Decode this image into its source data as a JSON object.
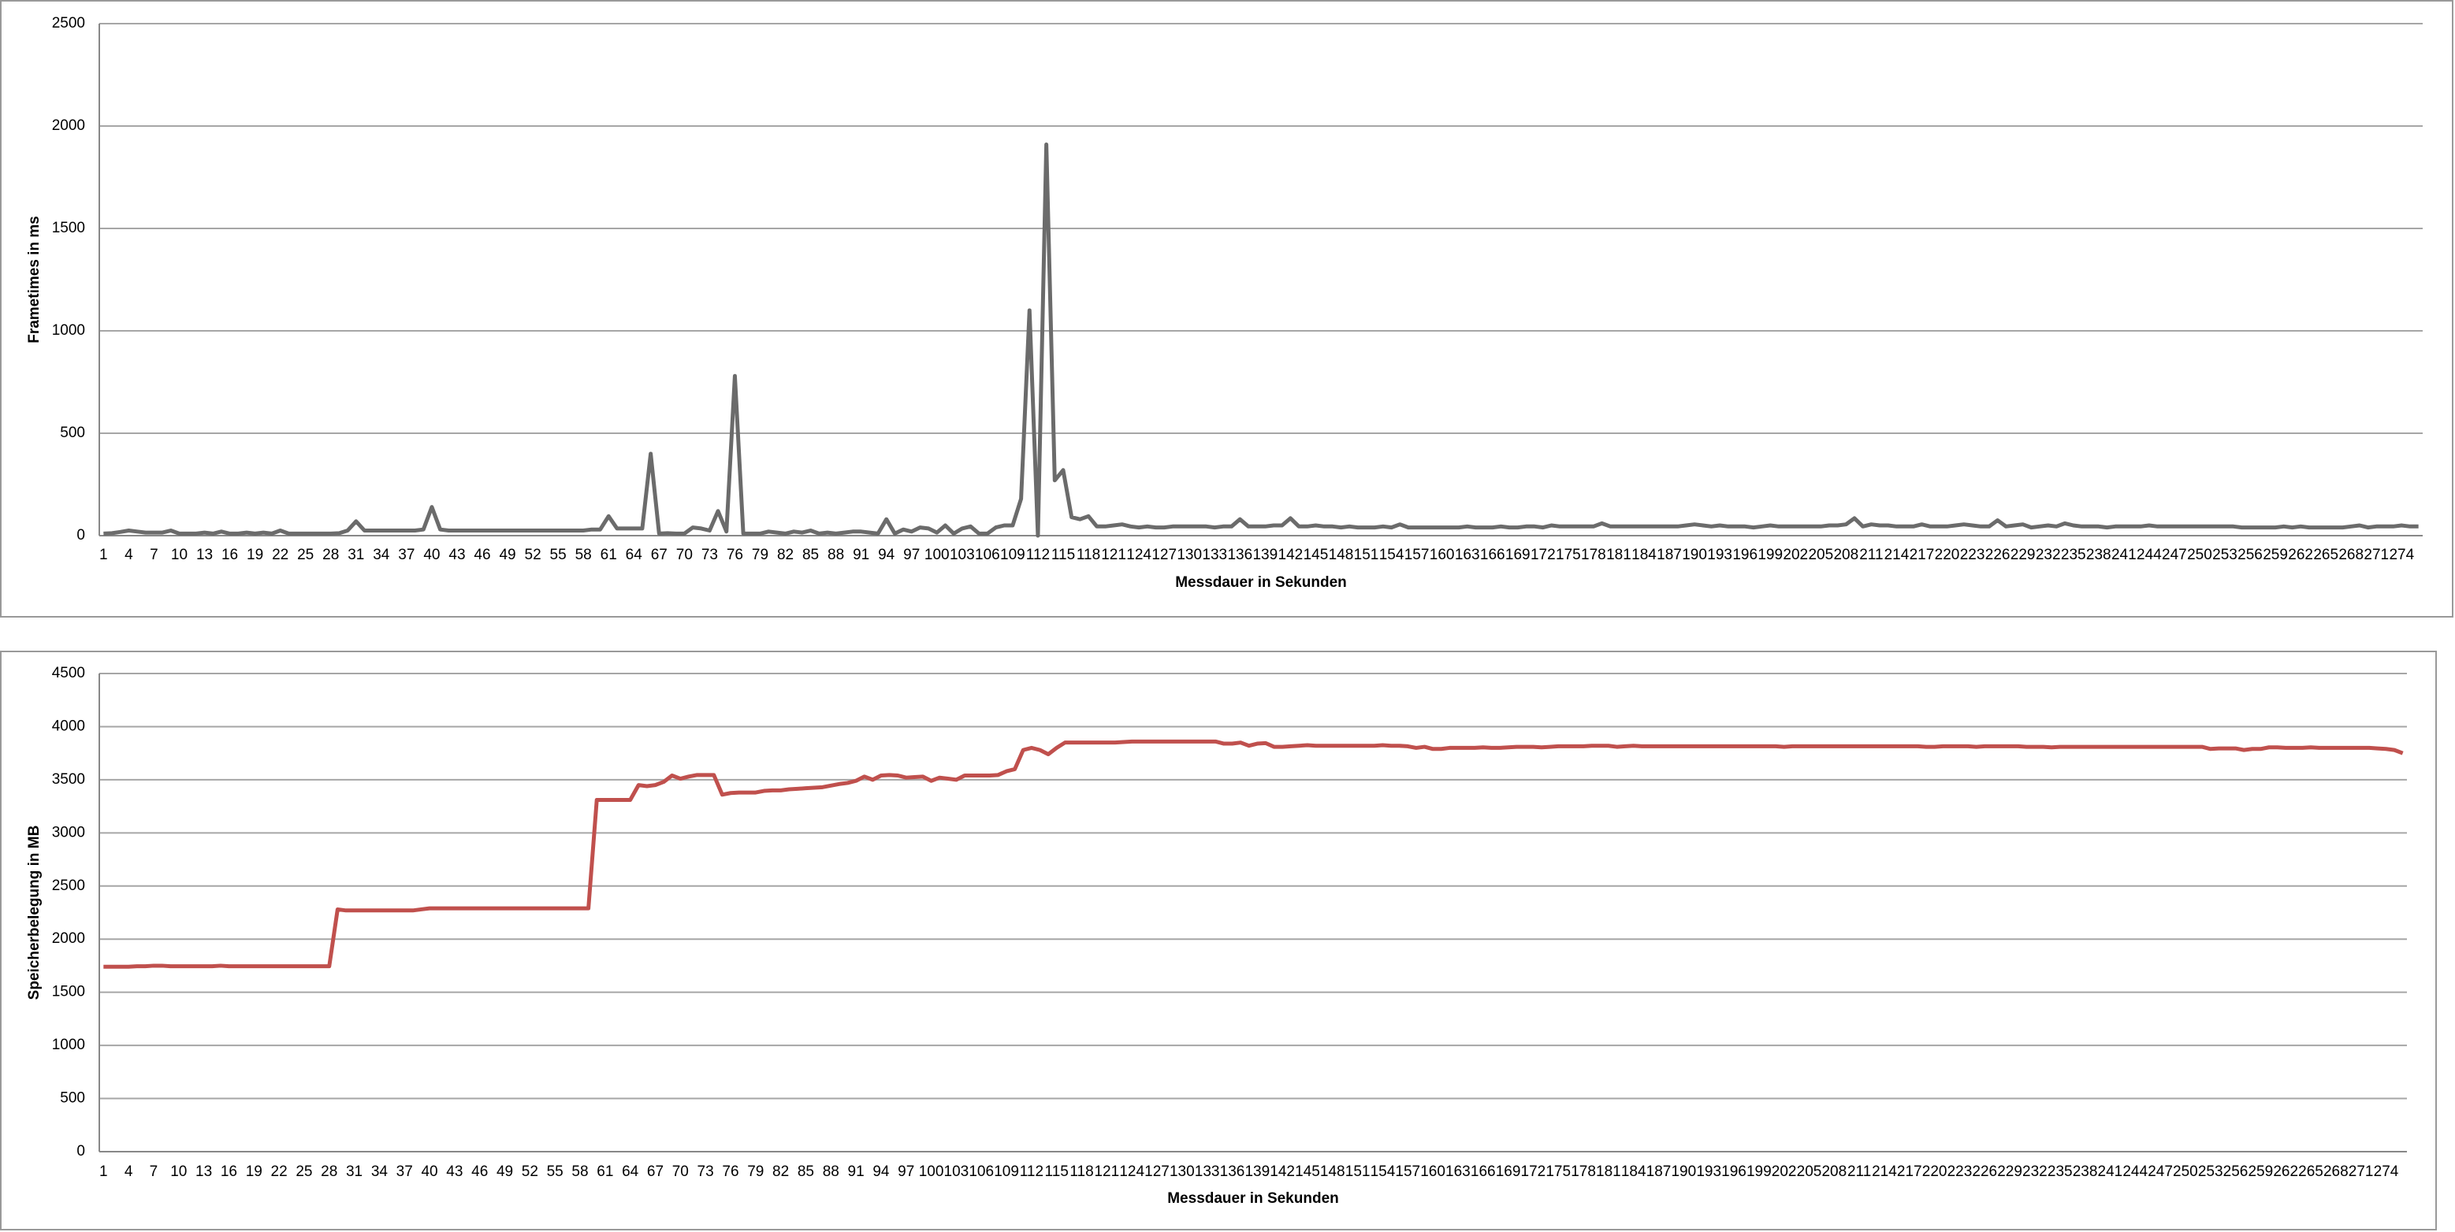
{
  "chart_data": [
    {
      "type": "line",
      "color": "#6b6b6b",
      "y_label": "Frametimes in ms",
      "x_label": "Messdauer in Sekunden",
      "grid": true,
      "x": [
        1,
        2,
        3,
        4,
        5,
        6,
        7,
        8,
        9,
        10,
        11,
        12,
        13,
        14,
        15,
        16,
        17,
        18,
        19,
        20,
        21,
        22,
        23,
        24,
        25,
        26,
        27,
        28,
        29,
        30,
        31,
        32,
        33,
        34,
        35,
        36,
        37,
        38,
        39,
        40,
        41,
        42,
        43,
        44,
        45,
        46,
        47,
        48,
        49,
        50,
        51,
        52,
        53,
        54,
        55,
        56,
        57,
        58,
        59,
        60,
        61,
        62,
        63,
        64,
        65,
        66,
        67,
        68,
        69,
        70,
        71,
        72,
        73,
        74,
        75,
        76,
        77,
        78,
        79,
        80,
        81,
        82,
        83,
        84,
        85,
        86,
        87,
        88,
        89,
        90,
        91,
        92,
        93,
        94,
        95,
        96,
        97,
        98,
        99,
        100,
        101,
        102,
        103,
        104,
        105,
        106,
        107,
        108,
        109,
        110,
        111,
        112,
        113,
        114,
        115,
        116,
        117,
        118,
        119,
        120,
        121,
        122,
        123,
        124,
        125,
        126,
        127,
        128,
        129,
        130,
        131,
        132,
        133,
        134,
        135,
        136,
        137,
        138,
        139,
        140,
        141,
        142,
        143,
        144,
        145,
        146,
        147,
        148,
        149,
        150,
        151,
        152,
        153,
        154,
        155,
        156,
        157,
        158,
        159,
        160,
        161,
        162,
        163,
        164,
        165,
        166,
        167,
        168,
        169,
        170,
        171,
        172,
        173,
        174,
        175,
        176,
        177,
        178,
        179,
        180,
        181,
        182,
        183,
        184,
        185,
        186,
        187,
        188,
        189,
        190,
        191,
        192,
        193,
        194,
        195,
        196,
        197,
        198,
        199,
        200,
        201,
        202,
        203,
        204,
        205,
        206,
        207,
        208,
        209,
        210,
        211,
        212,
        213,
        214,
        215,
        216,
        217,
        218,
        219,
        220,
        221,
        222,
        223,
        224,
        225,
        226,
        227,
        228,
        229,
        230,
        231,
        232,
        233,
        234,
        235,
        236,
        237,
        238,
        239,
        240,
        241,
        242,
        243,
        244,
        245,
        246,
        247,
        248,
        249,
        250,
        251,
        252,
        253,
        254,
        255,
        256,
        257,
        258,
        259,
        260,
        261,
        262,
        263,
        264,
        265,
        266,
        267,
        268,
        269,
        270,
        271,
        272,
        273,
        274,
        275,
        276
      ],
      "values": [
        10,
        12,
        18,
        25,
        20,
        15,
        15,
        15,
        25,
        10,
        10,
        10,
        15,
        10,
        20,
        10,
        10,
        15,
        10,
        15,
        10,
        25,
        10,
        10,
        10,
        10,
        10,
        10,
        12,
        25,
        70,
        25,
        25,
        25,
        25,
        25,
        25,
        25,
        30,
        140,
        30,
        25,
        25,
        25,
        25,
        25,
        25,
        25,
        25,
        25,
        25,
        25,
        25,
        25,
        25,
        25,
        25,
        25,
        30,
        30,
        95,
        35,
        35,
        35,
        35,
        400,
        10,
        12,
        10,
        10,
        40,
        35,
        25,
        120,
        20,
        780,
        10,
        10,
        10,
        20,
        15,
        10,
        20,
        15,
        25,
        10,
        15,
        10,
        15,
        20,
        20,
        15,
        10,
        80,
        10,
        30,
        20,
        40,
        35,
        15,
        50,
        10,
        35,
        45,
        10,
        10,
        40,
        50,
        50,
        180,
        1100,
        0,
        1910,
        270,
        320,
        90,
        80,
        95,
        45,
        45,
        50,
        55,
        45,
        40,
        45,
        40,
        40,
        45,
        45,
        45,
        45,
        45,
        40,
        45,
        45,
        80,
        45,
        45,
        45,
        50,
        50,
        85,
        45,
        45,
        50,
        45,
        45,
        40,
        45,
        40,
        40,
        40,
        45,
        40,
        55,
        40,
        40,
        40,
        40,
        40,
        40,
        40,
        45,
        40,
        40,
        40,
        45,
        40,
        40,
        45,
        45,
        40,
        50,
        45,
        45,
        45,
        45,
        45,
        60,
        45,
        45,
        45,
        45,
        45,
        45,
        45,
        45,
        45,
        50,
        55,
        50,
        45,
        50,
        45,
        45,
        45,
        40,
        45,
        50,
        45,
        45,
        45,
        45,
        45,
        45,
        50,
        50,
        55,
        85,
        45,
        55,
        50,
        50,
        45,
        45,
        45,
        55,
        45,
        45,
        45,
        50,
        55,
        50,
        45,
        45,
        75,
        45,
        50,
        55,
        40,
        45,
        50,
        45,
        60,
        50,
        45,
        45,
        45,
        40,
        45,
        45,
        45,
        45,
        50,
        45,
        45,
        45,
        45,
        45,
        45,
        45,
        45,
        45,
        45,
        40,
        40,
        40,
        40,
        40,
        45,
        40,
        45,
        40,
        40,
        40,
        40,
        40,
        45,
        50,
        40,
        45,
        45,
        45,
        50,
        45,
        45
      ],
      "xlim": [
        0.5,
        276.5
      ],
      "xticks": [
        1,
        4,
        7,
        10,
        13,
        16,
        19,
        22,
        25,
        28,
        31,
        34,
        37,
        40,
        43,
        46,
        49,
        52,
        55,
        58,
        61,
        64,
        67,
        70,
        73,
        76,
        79,
        82,
        85,
        88,
        91,
        94,
        97,
        100,
        103,
        106,
        109,
        112,
        115,
        118,
        121,
        124,
        127,
        130,
        133,
        136,
        139,
        142,
        145,
        148,
        151,
        154,
        157,
        160,
        163,
        166,
        169,
        172,
        175,
        178,
        181,
        184,
        187,
        190,
        193,
        196,
        199,
        202,
        205,
        208,
        211,
        214,
        217,
        220,
        223,
        226,
        229,
        232,
        235,
        238,
        241,
        244,
        247,
        250,
        253,
        256,
        259,
        262,
        265,
        268,
        271,
        274
      ],
      "ylim": [
        0,
        2500
      ],
      "yticks": [
        0,
        500,
        1000,
        1500,
        2000,
        2500
      ]
    },
    {
      "type": "line",
      "color": "#c0504d",
      "y_label": "Speicherbelegung in MB",
      "x_label": "Messdauer in Sekunden",
      "grid": true,
      "x": [
        1,
        2,
        3,
        4,
        5,
        6,
        7,
        8,
        9,
        10,
        11,
        12,
        13,
        14,
        15,
        16,
        17,
        18,
        19,
        20,
        21,
        22,
        23,
        24,
        25,
        26,
        27,
        28,
        29,
        30,
        31,
        32,
        33,
        34,
        35,
        36,
        37,
        38,
        39,
        40,
        41,
        42,
        43,
        44,
        45,
        46,
        47,
        48,
        49,
        50,
        51,
        52,
        53,
        54,
        55,
        56,
        57,
        58,
        59,
        60,
        61,
        62,
        63,
        64,
        65,
        66,
        67,
        68,
        69,
        70,
        71,
        72,
        73,
        74,
        75,
        76,
        77,
        78,
        79,
        80,
        81,
        82,
        83,
        84,
        85,
        86,
        87,
        88,
        89,
        90,
        91,
        92,
        93,
        94,
        95,
        96,
        97,
        98,
        99,
        100,
        101,
        102,
        103,
        104,
        105,
        106,
        107,
        108,
        109,
        110,
        111,
        112,
        113,
        114,
        115,
        116,
        117,
        118,
        119,
        120,
        121,
        122,
        123,
        124,
        125,
        126,
        127,
        128,
        129,
        130,
        131,
        132,
        133,
        134,
        135,
        136,
        137,
        138,
        139,
        140,
        141,
        142,
        143,
        144,
        145,
        146,
        147,
        148,
        149,
        150,
        151,
        152,
        153,
        154,
        155,
        156,
        157,
        158,
        159,
        160,
        161,
        162,
        163,
        164,
        165,
        166,
        167,
        168,
        169,
        170,
        171,
        172,
        173,
        174,
        175,
        176,
        177,
        178,
        179,
        180,
        181,
        182,
        183,
        184,
        185,
        186,
        187,
        188,
        189,
        190,
        191,
        192,
        193,
        194,
        195,
        196,
        197,
        198,
        199,
        200,
        201,
        202,
        203,
        204,
        205,
        206,
        207,
        208,
        209,
        210,
        211,
        212,
        213,
        214,
        215,
        216,
        217,
        218,
        219,
        220,
        221,
        222,
        223,
        224,
        225,
        226,
        227,
        228,
        229,
        230,
        231,
        232,
        233,
        234,
        235,
        236,
        237,
        238,
        239,
        240,
        241,
        242,
        243,
        244,
        245,
        246,
        247,
        248,
        249,
        250,
        251,
        252,
        253,
        254,
        255,
        256,
        257,
        258,
        259,
        260,
        261,
        262,
        263,
        264,
        265,
        266,
        267,
        268,
        269,
        270,
        271,
        272,
        273,
        274,
        275,
        276
      ],
      "values": [
        1740,
        1740,
        1740,
        1740,
        1745,
        1745,
        1750,
        1750,
        1745,
        1745,
        1745,
        1745,
        1745,
        1745,
        1750,
        1745,
        1745,
        1745,
        1745,
        1745,
        1745,
        1745,
        1745,
        1745,
        1745,
        1745,
        1745,
        1745,
        2280,
        2270,
        2270,
        2270,
        2270,
        2270,
        2270,
        2270,
        2270,
        2270,
        2280,
        2290,
        2290,
        2290,
        2290,
        2290,
        2290,
        2290,
        2290,
        2290,
        2290,
        2290,
        2290,
        2290,
        2290,
        2290,
        2290,
        2290,
        2290,
        2290,
        2290,
        3310,
        3310,
        3310,
        3310,
        3310,
        3450,
        3440,
        3450,
        3480,
        3540,
        3510,
        3530,
        3545,
        3545,
        3545,
        3360,
        3375,
        3380,
        3380,
        3380,
        3395,
        3400,
        3400,
        3410,
        3415,
        3420,
        3425,
        3430,
        3445,
        3460,
        3470,
        3490,
        3530,
        3500,
        3540,
        3545,
        3540,
        3520,
        3525,
        3530,
        3490,
        3520,
        3510,
        3500,
        3540,
        3540,
        3540,
        3540,
        3545,
        3580,
        3600,
        3780,
        3800,
        3780,
        3740,
        3800,
        3850,
        3850,
        3850,
        3850,
        3850,
        3850,
        3850,
        3855,
        3860,
        3860,
        3860,
        3860,
        3860,
        3860,
        3860,
        3860,
        3860,
        3860,
        3860,
        3840,
        3840,
        3850,
        3820,
        3840,
        3845,
        3810,
        3810,
        3815,
        3820,
        3825,
        3820,
        3820,
        3820,
        3820,
        3820,
        3820,
        3820,
        3820,
        3825,
        3820,
        3820,
        3815,
        3800,
        3810,
        3790,
        3790,
        3800,
        3800,
        3800,
        3800,
        3805,
        3800,
        3800,
        3805,
        3810,
        3810,
        3810,
        3805,
        3810,
        3815,
        3815,
        3815,
        3815,
        3820,
        3820,
        3820,
        3810,
        3815,
        3820,
        3815,
        3815,
        3815,
        3815,
        3815,
        3815,
        3815,
        3815,
        3815,
        3815,
        3815,
        3815,
        3815,
        3815,
        3815,
        3815,
        3815,
        3810,
        3815,
        3815,
        3815,
        3815,
        3815,
        3815,
        3815,
        3815,
        3815,
        3815,
        3815,
        3815,
        3815,
        3815,
        3815,
        3815,
        3810,
        3810,
        3815,
        3815,
        3815,
        3815,
        3810,
        3815,
        3815,
        3815,
        3815,
        3815,
        3810,
        3810,
        3810,
        3805,
        3810,
        3810,
        3810,
        3810,
        3810,
        3810,
        3810,
        3810,
        3810,
        3810,
        3810,
        3810,
        3810,
        3810,
        3810,
        3810,
        3810,
        3810,
        3790,
        3795,
        3795,
        3795,
        3780,
        3790,
        3790,
        3805,
        3805,
        3800,
        3800,
        3800,
        3805,
        3800,
        3800,
        3800,
        3800,
        3800,
        3800,
        3800,
        3795,
        3790,
        3780,
        3750
      ],
      "xlim": [
        0.5,
        276.5
      ],
      "xticks": [
        1,
        4,
        7,
        10,
        13,
        16,
        19,
        22,
        25,
        28,
        31,
        34,
        37,
        40,
        43,
        46,
        49,
        52,
        55,
        58,
        61,
        64,
        67,
        70,
        73,
        76,
        79,
        82,
        85,
        88,
        91,
        94,
        97,
        100,
        103,
        106,
        109,
        112,
        115,
        118,
        121,
        124,
        127,
        130,
        133,
        136,
        139,
        142,
        145,
        148,
        151,
        154,
        157,
        160,
        163,
        166,
        169,
        172,
        175,
        178,
        181,
        184,
        187,
        190,
        193,
        196,
        199,
        202,
        205,
        208,
        211,
        214,
        217,
        220,
        223,
        226,
        229,
        232,
        235,
        238,
        241,
        244,
        247,
        250,
        253,
        256,
        259,
        262,
        265,
        268,
        271,
        274
      ],
      "ylim": [
        0,
        4500
      ],
      "yticks": [
        0,
        500,
        1000,
        1500,
        2000,
        2500,
        3000,
        3500,
        4000,
        4500
      ]
    }
  ]
}
